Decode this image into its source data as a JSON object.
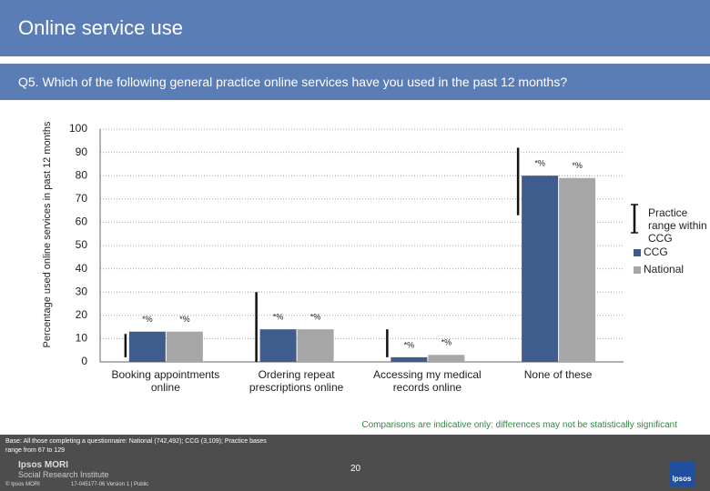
{
  "header": {
    "title": "Online service use",
    "question": "Q5. Which of the following general practice online services have you used in the past 12 months?"
  },
  "chart_data": {
    "type": "bar",
    "y_label": "Percentage used online services in past 12 months",
    "categories": [
      "Booking appointments online",
      "Ordering repeat prescriptions online",
      "Accessing my medical records online",
      "None of these"
    ],
    "series": [
      {
        "name": "CCG",
        "color": "#3f5d8c",
        "values": [
          13,
          14,
          2,
          80
        ],
        "point_labels": [
          "*%",
          "*%",
          "*%",
          "*%"
        ]
      },
      {
        "name": "National",
        "color": "#a6a6a6",
        "values": [
          13,
          14,
          3,
          79
        ],
        "point_labels": [
          "*%",
          "*%",
          "*%",
          "*%"
        ]
      }
    ],
    "range_name": "Practice range within CCG",
    "ranges": [
      {
        "low": 2,
        "high": 12
      },
      {
        "low": 0,
        "high": 30
      },
      {
        "low": 2,
        "high": 14
      },
      {
        "low": 63,
        "high": 92
      }
    ],
    "ylim": [
      0,
      100
    ],
    "yticks": [
      0,
      10,
      20,
      30,
      40,
      50,
      60,
      70,
      80,
      90,
      100
    ],
    "grid": true,
    "note": "Comparisons are indicative only: differences may not be statistically significant"
  },
  "footer": {
    "base": "Base: All those completing a questionnaire: National (742,492); CCG (3,109); Practice bases range from 67 to 129",
    "page": "20",
    "org": "Ipsos MORI",
    "unit": "Social Research Institute",
    "copyright": "© Ipsos MORI",
    "job": "17-045177-06 Version 1 | Public",
    "logo": "Ipsos"
  }
}
